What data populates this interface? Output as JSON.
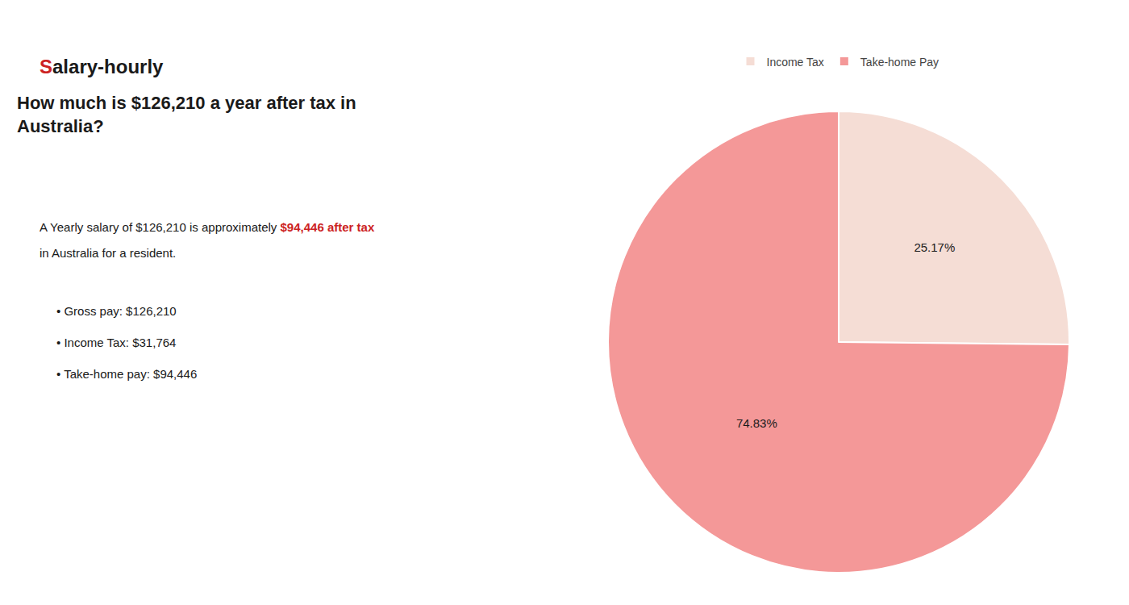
{
  "chart_data": {
    "type": "pie",
    "title": "How much is $126,210 a year after tax in\nAustralia?",
    "categories": [
      "Income Tax",
      "Take-home Pay"
    ],
    "values": [
      25.17,
      74.83
    ],
    "value_labels": [
      "25.17%",
      "74.83%"
    ],
    "colors": [
      "#f5ddd5",
      "#f49898"
    ],
    "data_labels": true,
    "legend": "top",
    "annotations": [
      {
        "text": "S",
        "color": "#cc2222"
      },
      {
        "text": "alary-hourly"
      },
      {
        "text": "A Yearly salary of $126,210 is approximately "
      },
      {
        "text": "$94,446 after tax",
        "color": "#cc2222"
      },
      {
        "text": "in Australia for a resident."
      },
      {
        "text": "• Gross pay: $126,210"
      },
      {
        "text": "• Income Tax: $31,764"
      },
      {
        "text": "• Take-home pay: $94,446"
      }
    ]
  }
}
